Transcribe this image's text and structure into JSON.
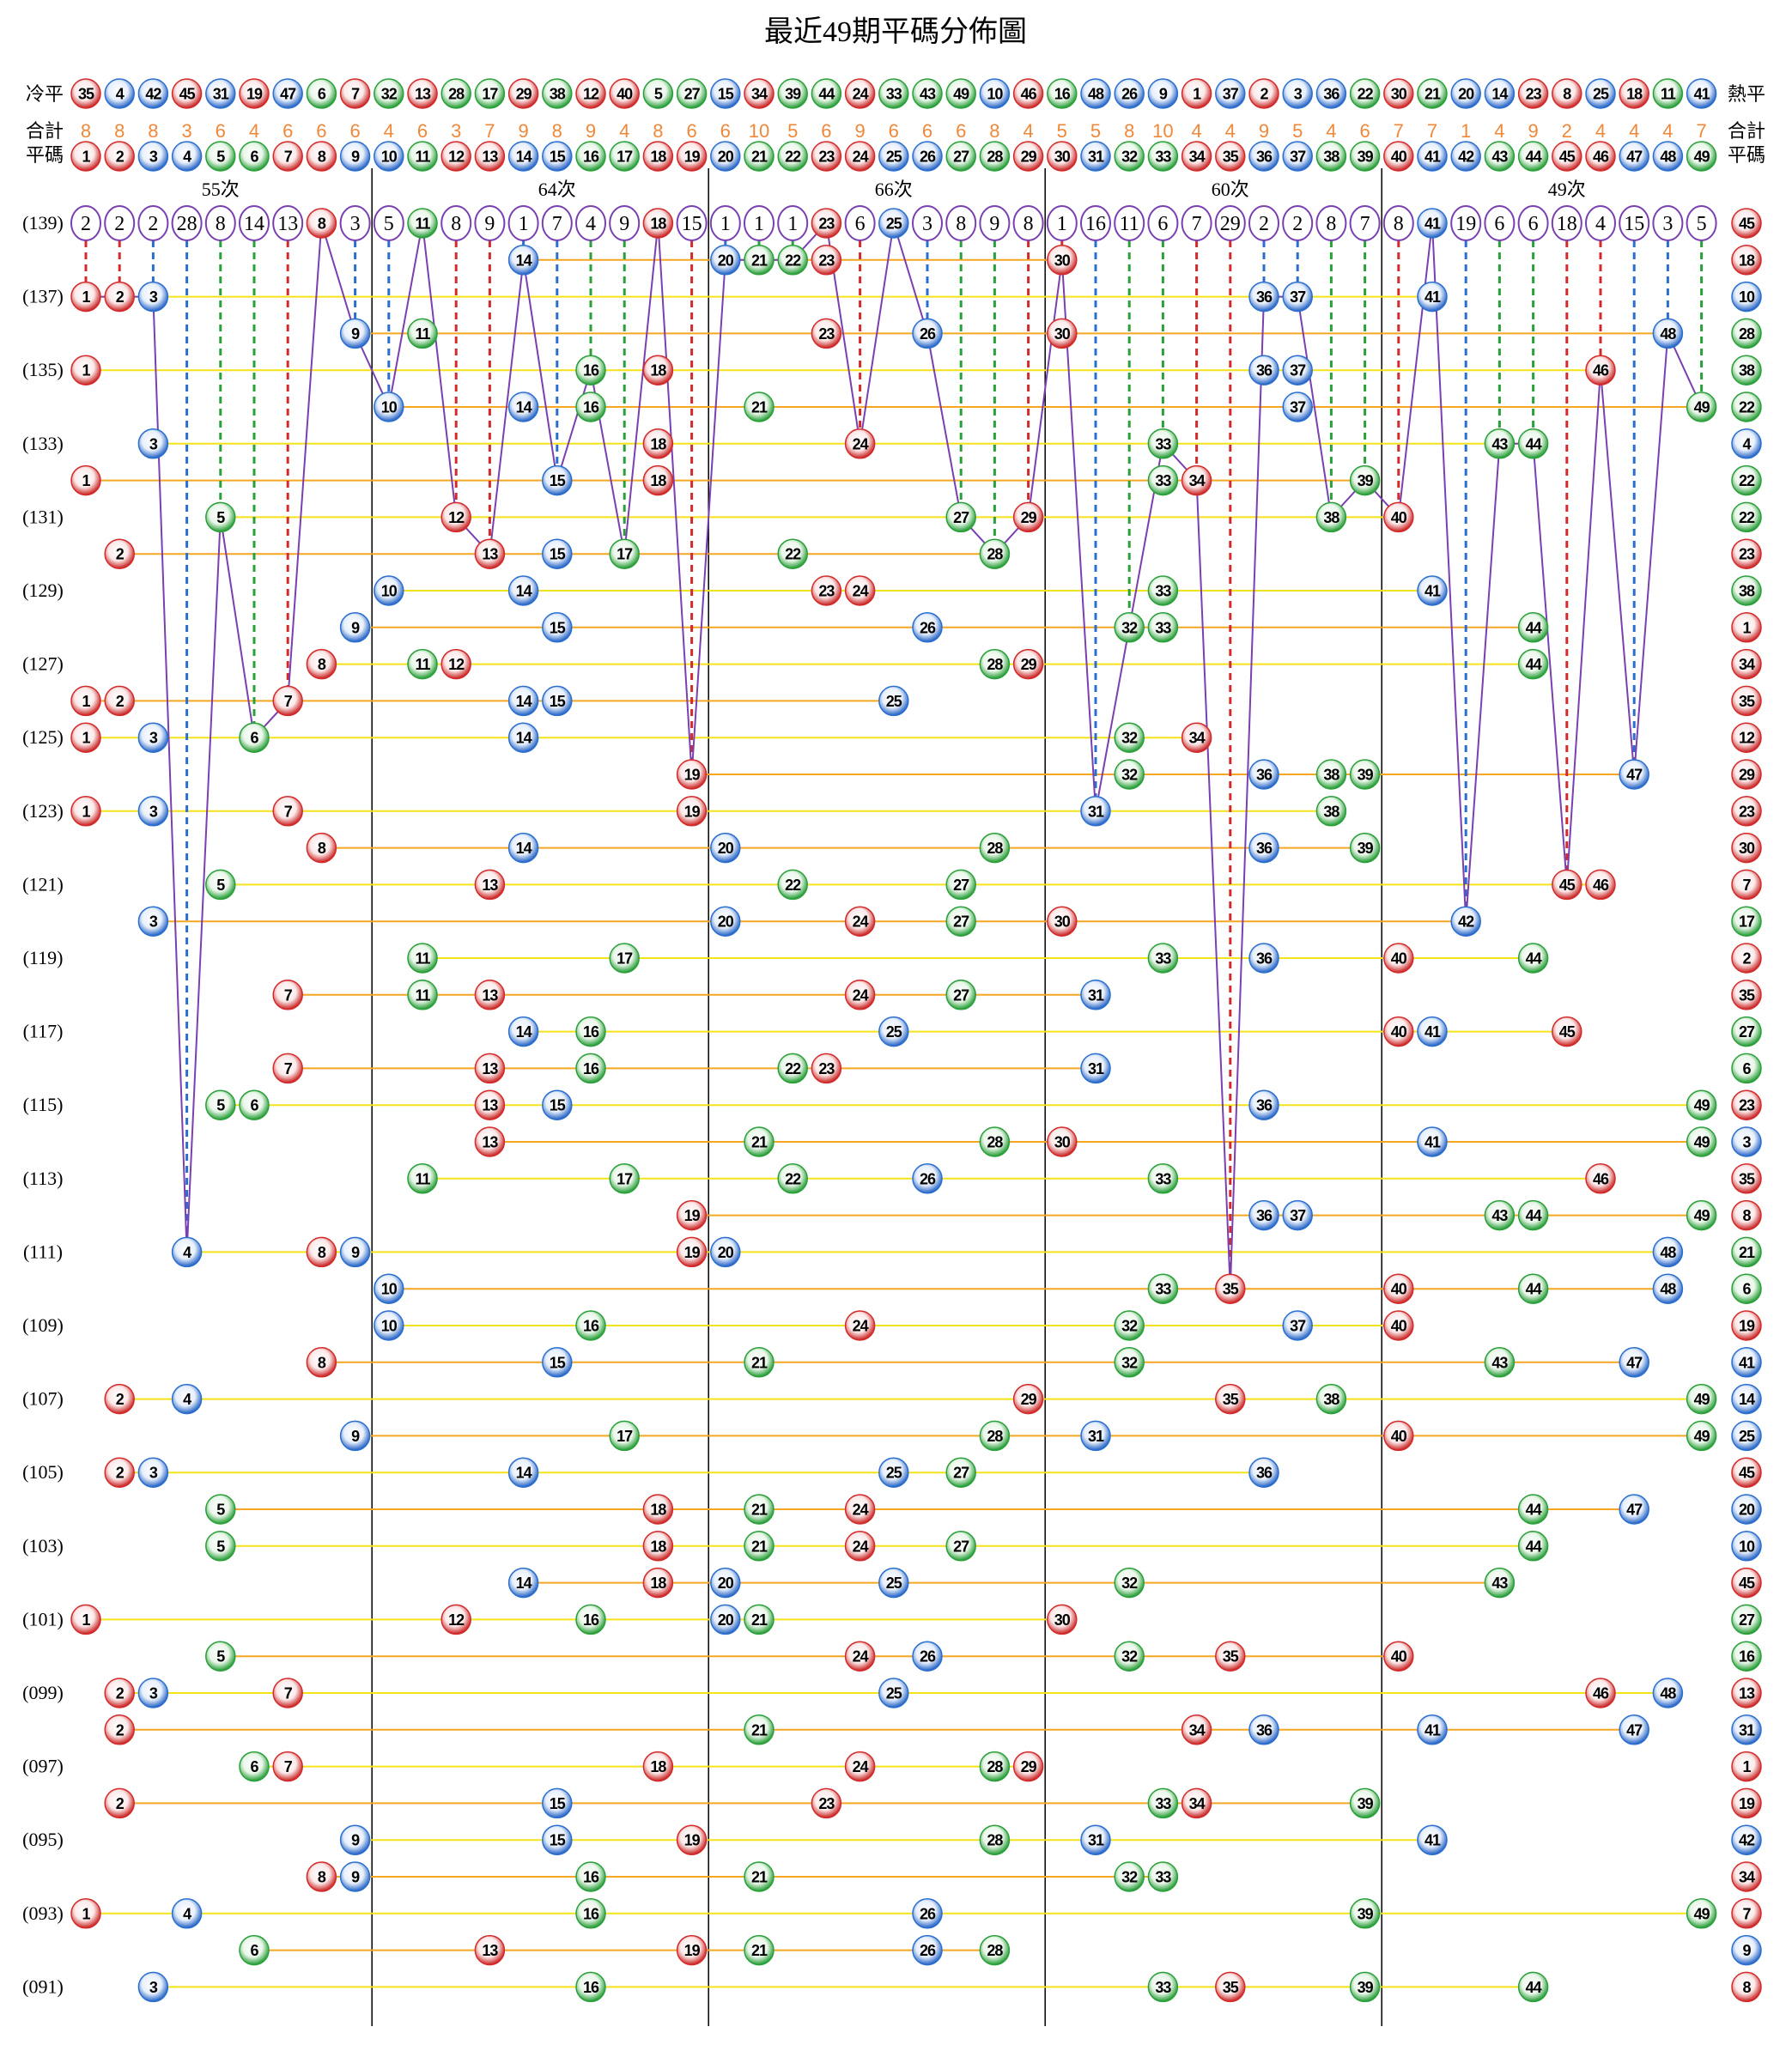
{
  "title": "最近49期平碼分佈圖",
  "colors": {
    "red": "#d42a2a",
    "blue": "#2a6fd0",
    "green": "#2aa03a",
    "purple": "#7a3fb0",
    "yellow_line": "#f4e21a",
    "orange_line": "#f5a623",
    "total_text": "#f0883a"
  },
  "ball_colors": {
    "red": [
      1,
      2,
      7,
      8,
      12,
      13,
      18,
      19,
      23,
      24,
      29,
      30,
      34,
      35,
      40,
      45,
      46
    ],
    "blue": [
      3,
      4,
      9,
      10,
      14,
      15,
      20,
      25,
      26,
      31,
      36,
      37,
      41,
      42,
      47,
      48
    ],
    "green": [
      5,
      6,
      11,
      16,
      17,
      21,
      22,
      27,
      28,
      32,
      33,
      38,
      39,
      43,
      44,
      49
    ]
  },
  "header": {
    "cold_label": "冷平",
    "hot_label": "熱平",
    "cold_to_hot": [
      35,
      4,
      42,
      45,
      31,
      19,
      47,
      6,
      7,
      32,
      13,
      28,
      17,
      29,
      38,
      12,
      40,
      5,
      27,
      15,
      34,
      39,
      44,
      24,
      33,
      43,
      49,
      10,
      46,
      16,
      48,
      26,
      9,
      1,
      37,
      2,
      3,
      36,
      22,
      30,
      21,
      20,
      14,
      23,
      8,
      25,
      18,
      11,
      41
    ],
    "total_label": "合計",
    "totals": [
      8,
      8,
      8,
      3,
      6,
      4,
      6,
      6,
      6,
      4,
      6,
      3,
      7,
      9,
      8,
      9,
      4,
      8,
      6,
      6,
      10,
      5,
      6,
      9,
      6,
      6,
      6,
      8,
      4,
      5,
      5,
      8,
      10,
      4,
      4,
      9,
      5,
      4,
      6,
      7,
      7,
      1,
      4,
      9,
      2,
      4,
      4,
      4,
      7
    ],
    "number_label": "平碼",
    "numbers": [
      1,
      2,
      3,
      4,
      5,
      6,
      7,
      8,
      9,
      10,
      11,
      12,
      13,
      14,
      15,
      16,
      17,
      18,
      19,
      20,
      21,
      22,
      23,
      24,
      25,
      26,
      27,
      28,
      29,
      30,
      31,
      32,
      33,
      34,
      35,
      36,
      37,
      38,
      39,
      40,
      41,
      42,
      43,
      44,
      45,
      46,
      47,
      48,
      49
    ],
    "section_counts": [
      "55次",
      "64次",
      "66次",
      "60次",
      "49次"
    ]
  },
  "latest_gaps": [
    2,
    2,
    2,
    28,
    8,
    14,
    13,
    null,
    3,
    5,
    null,
    8,
    9,
    1,
    7,
    4,
    9,
    null,
    15,
    1,
    1,
    1,
    null,
    6,
    null,
    3,
    8,
    9,
    8,
    1,
    16,
    11,
    6,
    7,
    29,
    2,
    2,
    8,
    7,
    8,
    null,
    19,
    6,
    6,
    18,
    4,
    15,
    3,
    5
  ],
  "chart_data": {
    "type": "table",
    "title": "最近49期平碼分佈圖",
    "rows": [
      {
        "period": "(139)",
        "balls": [
          8,
          11,
          18,
          23,
          25,
          41
        ],
        "special": 45
      },
      {
        "period": "",
        "balls": [
          14,
          20,
          21,
          22,
          23,
          30
        ],
        "special": 18
      },
      {
        "period": "(137)",
        "balls": [
          1,
          2,
          3,
          36,
          37,
          41
        ],
        "special": 10
      },
      {
        "period": "",
        "balls": [
          9,
          11,
          23,
          26,
          30,
          48
        ],
        "special": 28
      },
      {
        "period": "(135)",
        "balls": [
          1,
          16,
          18,
          36,
          37,
          46
        ],
        "special": 38
      },
      {
        "period": "",
        "balls": [
          10,
          14,
          16,
          21,
          37,
          49
        ],
        "special": 22
      },
      {
        "period": "(133)",
        "balls": [
          3,
          18,
          24,
          33,
          43,
          44
        ],
        "special": 4
      },
      {
        "period": "",
        "balls": [
          1,
          15,
          18,
          33,
          34,
          39
        ],
        "special": 22
      },
      {
        "period": "(131)",
        "balls": [
          5,
          12,
          27,
          29,
          38,
          40
        ],
        "special": 22
      },
      {
        "period": "",
        "balls": [
          2,
          13,
          15,
          17,
          22,
          28
        ],
        "special": 23
      },
      {
        "period": "(129)",
        "balls": [
          10,
          14,
          23,
          24,
          33,
          41
        ],
        "special": 38
      },
      {
        "period": "",
        "balls": [
          9,
          15,
          26,
          32,
          33,
          44
        ],
        "special": 1
      },
      {
        "period": "(127)",
        "balls": [
          8,
          11,
          12,
          28,
          29,
          44
        ],
        "special": 34
      },
      {
        "period": "",
        "balls": [
          1,
          2,
          7,
          14,
          15,
          25
        ],
        "special": 35
      },
      {
        "period": "(125)",
        "balls": [
          1,
          3,
          6,
          14,
          32,
          34
        ],
        "special": 12
      },
      {
        "period": "",
        "balls": [
          19,
          32,
          36,
          38,
          39,
          47
        ],
        "special": 29
      },
      {
        "period": "(123)",
        "balls": [
          1,
          3,
          7,
          19,
          31,
          38
        ],
        "special": 23
      },
      {
        "period": "",
        "balls": [
          8,
          14,
          20,
          28,
          36,
          39
        ],
        "special": 30
      },
      {
        "period": "(121)",
        "balls": [
          5,
          13,
          22,
          27,
          45,
          46
        ],
        "special": 7
      },
      {
        "period": "",
        "balls": [
          3,
          20,
          24,
          27,
          30,
          42
        ],
        "special": 17
      },
      {
        "period": "(119)",
        "balls": [
          11,
          17,
          33,
          36,
          40,
          44
        ],
        "special": 2
      },
      {
        "period": "",
        "balls": [
          7,
          11,
          13,
          24,
          27,
          31
        ],
        "special": 35
      },
      {
        "period": "(117)",
        "balls": [
          14,
          16,
          25,
          40,
          41,
          45
        ],
        "special": 27
      },
      {
        "period": "",
        "balls": [
          7,
          13,
          16,
          22,
          23,
          31
        ],
        "special": 6
      },
      {
        "period": "(115)",
        "balls": [
          5,
          6,
          13,
          15,
          36,
          49
        ],
        "special": 23
      },
      {
        "period": "",
        "balls": [
          13,
          21,
          28,
          30,
          41,
          49
        ],
        "special": 3
      },
      {
        "period": "(113)",
        "balls": [
          11,
          17,
          22,
          26,
          33,
          46
        ],
        "special": 35
      },
      {
        "period": "",
        "balls": [
          19,
          36,
          37,
          43,
          44,
          49
        ],
        "special": 8
      },
      {
        "period": "(111)",
        "balls": [
          4,
          8,
          9,
          19,
          20,
          48
        ],
        "special": 21
      },
      {
        "period": "",
        "balls": [
          10,
          33,
          35,
          40,
          44,
          48
        ],
        "special": 6
      },
      {
        "period": "(109)",
        "balls": [
          10,
          16,
          24,
          32,
          37,
          40
        ],
        "special": 19
      },
      {
        "period": "",
        "balls": [
          8,
          15,
          21,
          32,
          43,
          47
        ],
        "special": 41
      },
      {
        "period": "(107)",
        "balls": [
          2,
          4,
          29,
          35,
          38,
          49
        ],
        "special": 14
      },
      {
        "period": "",
        "balls": [
          9,
          17,
          28,
          31,
          40,
          49
        ],
        "special": 25
      },
      {
        "period": "(105)",
        "balls": [
          2,
          3,
          14,
          25,
          27,
          36
        ],
        "special": 45
      },
      {
        "period": "",
        "balls": [
          5,
          18,
          21,
          24,
          44,
          47
        ],
        "special": 20
      },
      {
        "period": "(103)",
        "balls": [
          5,
          18,
          21,
          24,
          27,
          44
        ],
        "special": 10
      },
      {
        "period": "",
        "balls": [
          14,
          18,
          20,
          25,
          32,
          43
        ],
        "special": 45
      },
      {
        "period": "(101)",
        "balls": [
          1,
          12,
          16,
          20,
          21,
          30
        ],
        "special": 27
      },
      {
        "period": "",
        "balls": [
          5,
          24,
          26,
          32,
          35,
          40
        ],
        "special": 16
      },
      {
        "period": "(099)",
        "balls": [
          2,
          3,
          7,
          25,
          46,
          48
        ],
        "special": 13
      },
      {
        "period": "",
        "balls": [
          2,
          21,
          34,
          36,
          41,
          47
        ],
        "special": 31
      },
      {
        "period": "(097)",
        "balls": [
          6,
          7,
          18,
          24,
          28,
          29
        ],
        "special": 1
      },
      {
        "period": "",
        "balls": [
          2,
          15,
          23,
          33,
          34,
          39
        ],
        "special": 19
      },
      {
        "period": "(095)",
        "balls": [
          9,
          15,
          19,
          28,
          31,
          41
        ],
        "special": 42
      },
      {
        "period": "",
        "balls": [
          8,
          9,
          16,
          21,
          32,
          33
        ],
        "special": 34
      },
      {
        "period": "(093)",
        "balls": [
          1,
          4,
          16,
          26,
          39,
          49
        ],
        "special": 7
      },
      {
        "period": "",
        "balls": [
          6,
          13,
          19,
          21,
          26,
          28
        ],
        "special": 9
      },
      {
        "period": "(091)",
        "balls": [
          3,
          16,
          33,
          35,
          39,
          44
        ],
        "special": 8
      }
    ]
  }
}
